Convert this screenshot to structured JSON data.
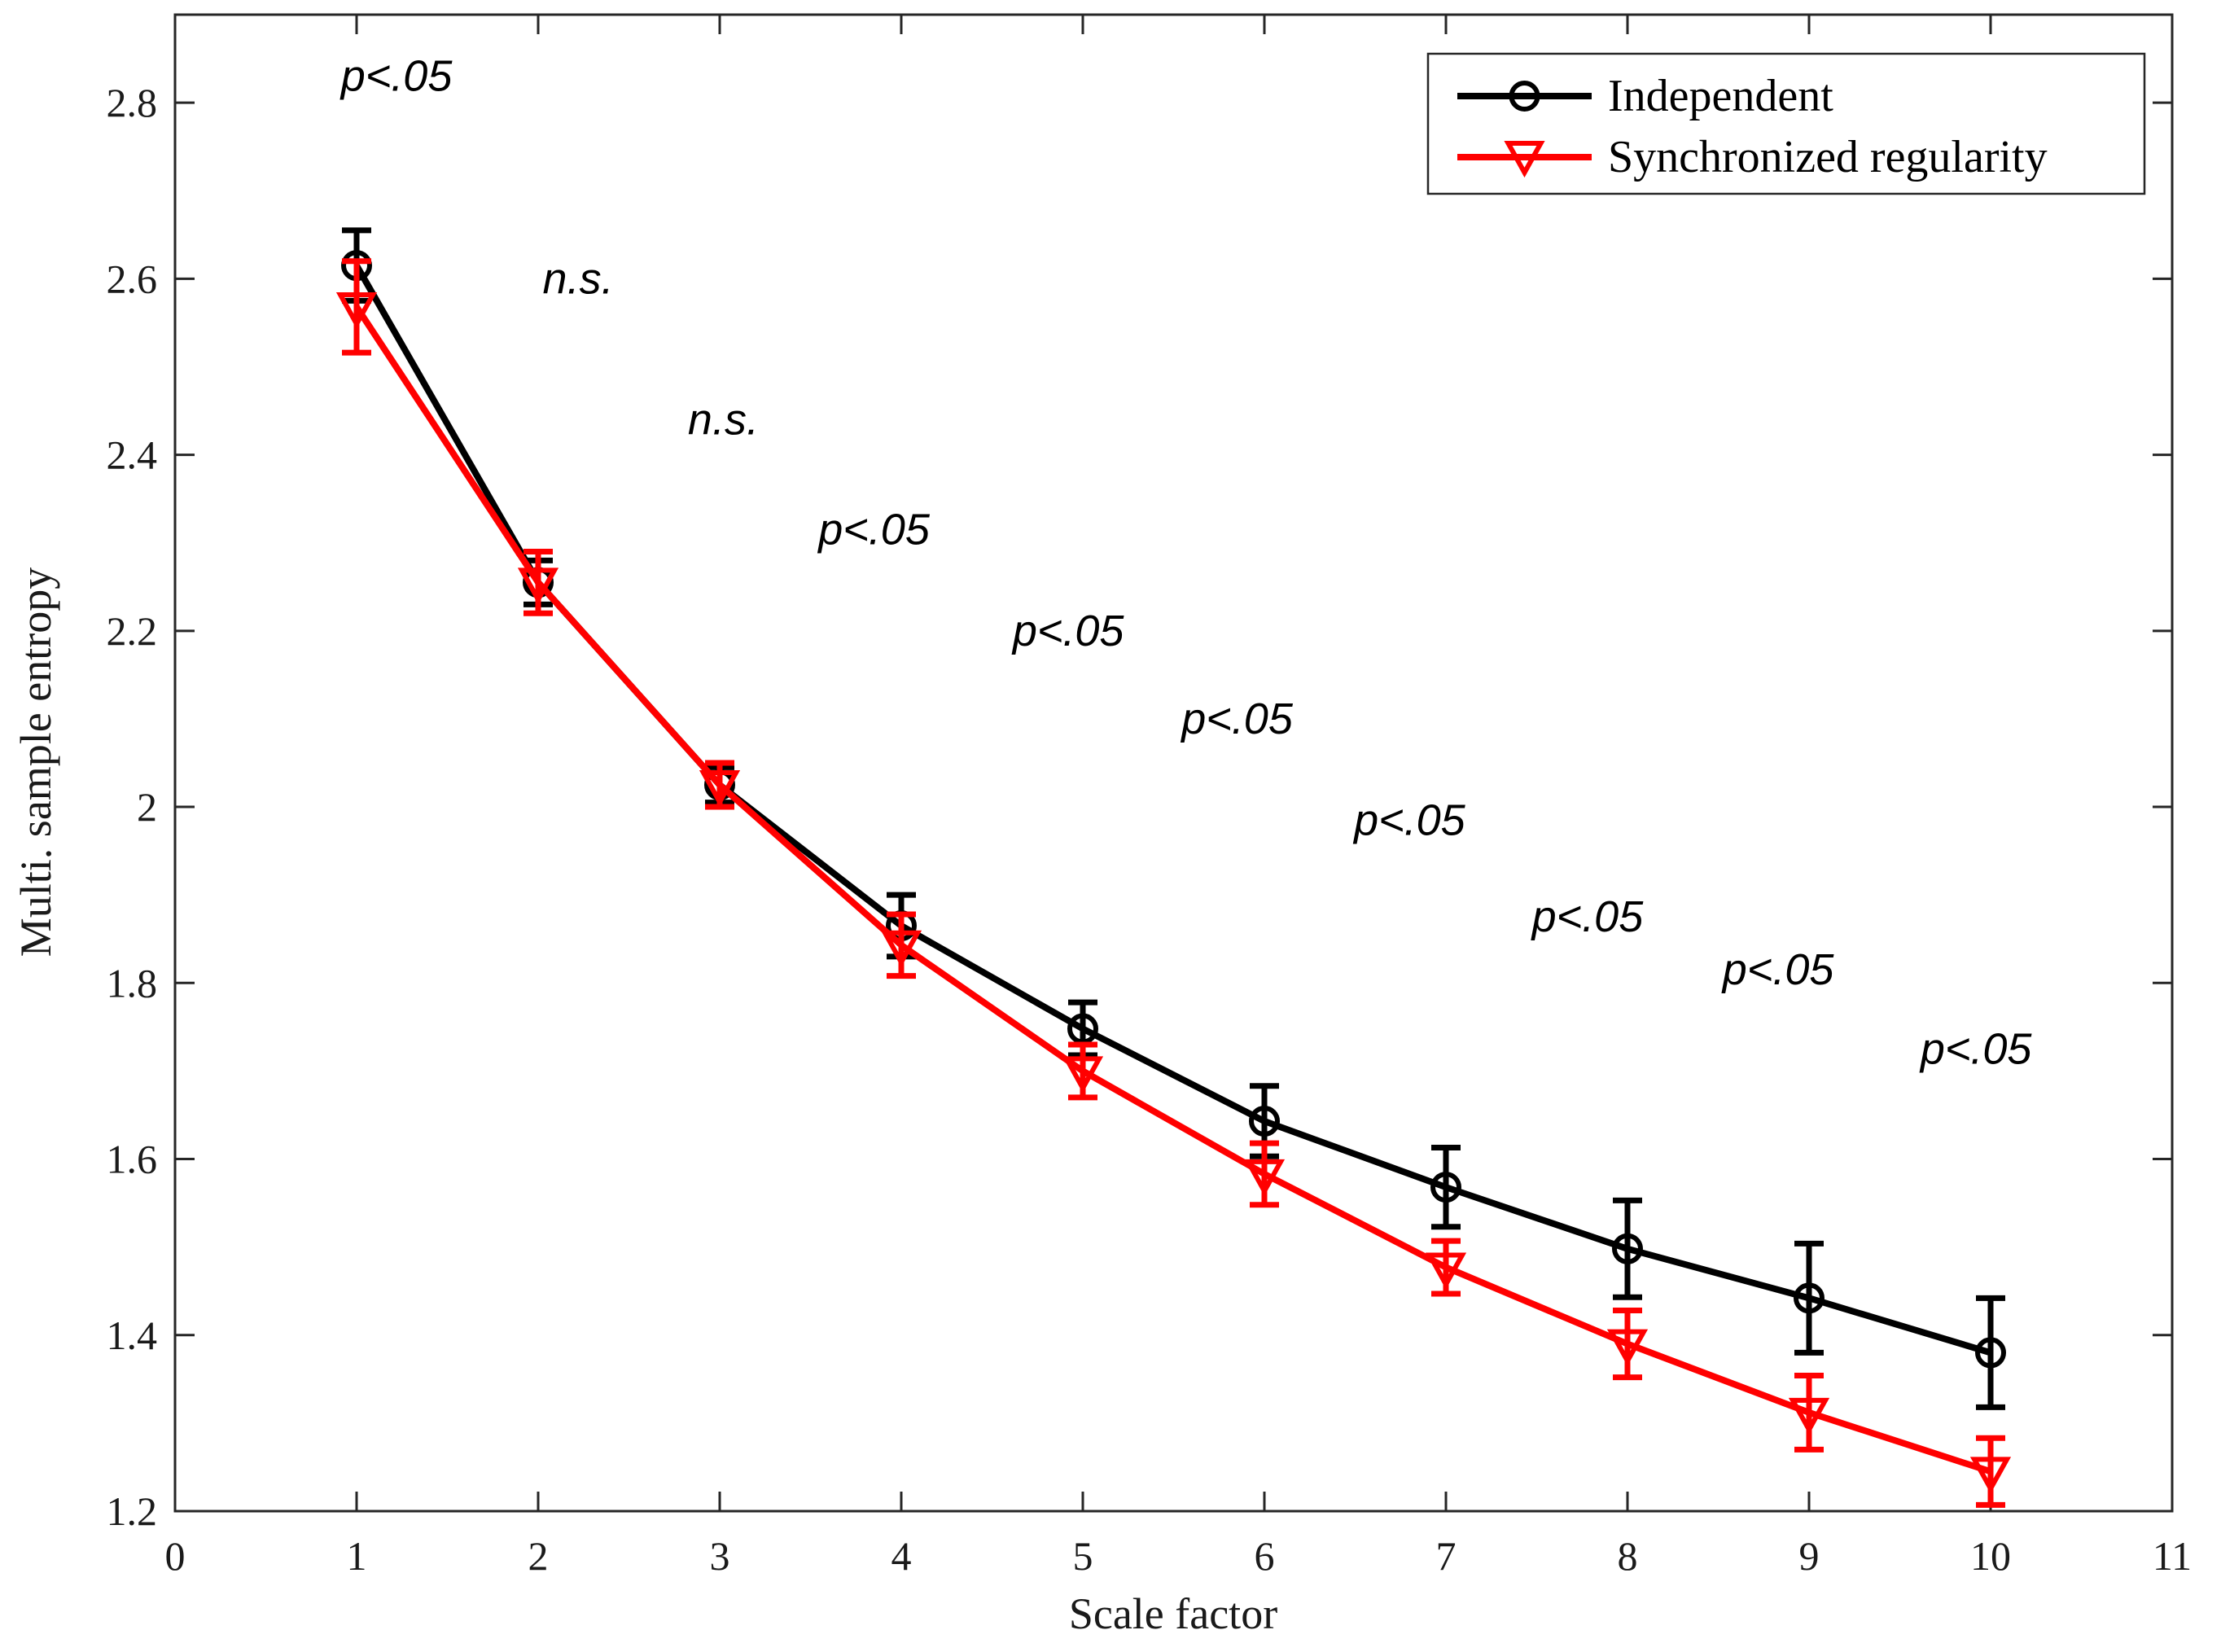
{
  "chart_data": {
    "type": "line",
    "xlabel": "Scale factor",
    "ylabel": "Multi. sample entropy",
    "xlim": [
      0,
      11
    ],
    "ylim": [
      1.2,
      2.9
    ],
    "xticks": [
      "0",
      "1",
      "2",
      "3",
      "4",
      "5",
      "6",
      "7",
      "8",
      "9",
      "10",
      "11"
    ],
    "yticks": [
      "1.2",
      "1.4",
      "1.6",
      "1.8",
      "2",
      "2.2",
      "2.4",
      "2.6",
      "2.8"
    ],
    "x": [
      1,
      2,
      3,
      4,
      5,
      6,
      7,
      8,
      9,
      10
    ],
    "series": [
      {
        "name": "Independent",
        "color": "#000000",
        "marker": "circle",
        "values": [
          2.615,
          2.255,
          2.025,
          1.865,
          1.748,
          1.643,
          1.568,
          1.498,
          1.442,
          1.38
        ],
        "errors": [
          0.04,
          0.025,
          0.02,
          0.035,
          0.03,
          0.04,
          0.045,
          0.055,
          0.062,
          0.062
        ]
      },
      {
        "name": "Synchronized regularity",
        "color": "#ff0000",
        "marker": "triangle-down",
        "values": [
          2.568,
          2.255,
          2.025,
          1.843,
          1.7,
          1.583,
          1.477,
          1.39,
          1.312,
          1.245
        ],
        "errors": [
          0.052,
          0.035,
          0.025,
          0.035,
          0.03,
          0.035,
          0.03,
          0.038,
          0.042,
          0.038
        ]
      }
    ],
    "annotations": [
      {
        "text": "p<.05",
        "x": 1.22,
        "y": 2.83
      },
      {
        "text": "n.s.",
        "x": 2.22,
        "y": 2.6
      },
      {
        "text": "n.s.",
        "x": 3.02,
        "y": 2.44
      },
      {
        "text": "p<.05",
        "x": 3.85,
        "y": 2.315
      },
      {
        "text": "p<.05",
        "x": 4.92,
        "y": 2.2
      },
      {
        "text": "p<.05",
        "x": 5.85,
        "y": 2.1
      },
      {
        "text": "p<.05",
        "x": 6.8,
        "y": 1.985
      },
      {
        "text": "p<.05",
        "x": 7.78,
        "y": 1.875
      },
      {
        "text": "p<.05",
        "x": 8.83,
        "y": 1.815
      },
      {
        "text": "p<.05",
        "x": 9.92,
        "y": 1.725
      }
    ],
    "legend": {
      "position": "top-right"
    },
    "grid": false
  }
}
